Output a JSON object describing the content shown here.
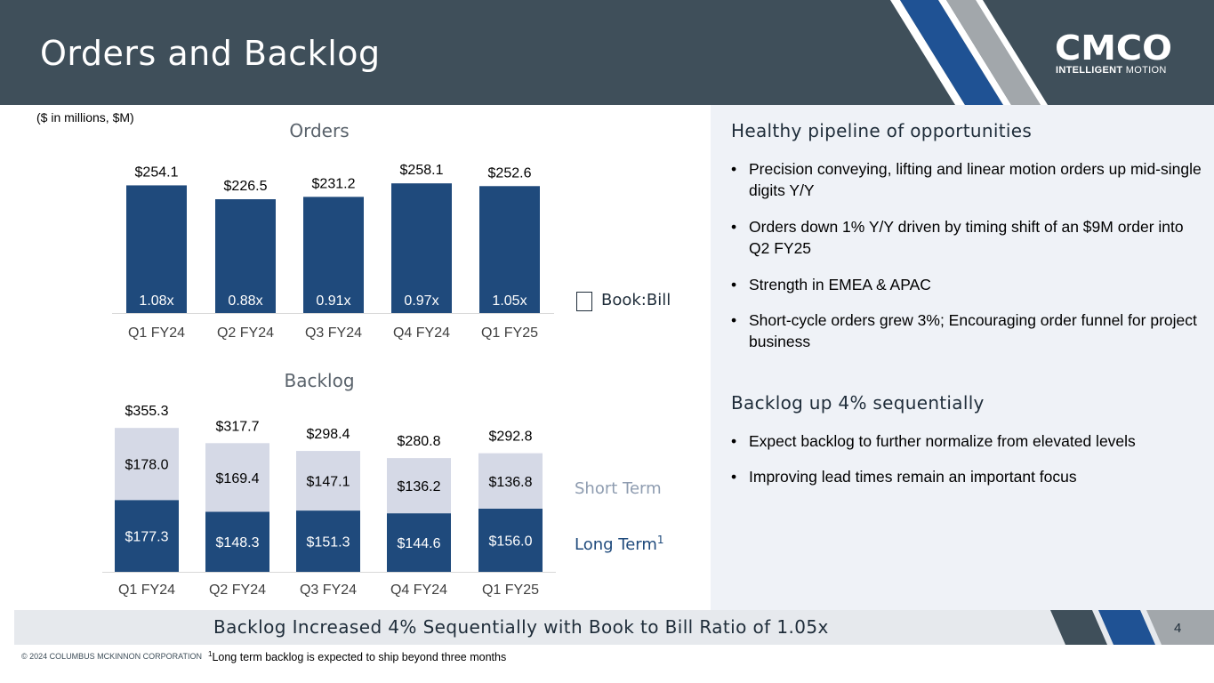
{
  "header": {
    "title": "Orders and Backlog",
    "logo_text": "CMCO",
    "logo_sub_bold": "INTELLIGENT",
    "logo_sub_light": "MOTION"
  },
  "units_note": "($ in millions, $M)",
  "legend": {
    "book_bill": "Book:Bill",
    "short_term": "Short Term",
    "long_term": "Long Term",
    "long_term_sup": "1"
  },
  "right_panel": {
    "heading1": "Healthy pipeline of opportunities",
    "bullets1": [
      "Precision conveying, lifting and linear motion orders up mid-single digits Y/Y",
      "Orders down 1% Y/Y driven by timing shift of an $9M order into Q2 FY25",
      "Strength in EMEA & APAC",
      "Short-cycle orders grew 3%; Encouraging order funnel for project business"
    ],
    "heading2": "Backlog up 4% sequentially",
    "bullets2": [
      "Expect backlog to further normalize from elevated levels",
      "Improving lead times remain an important focus"
    ]
  },
  "banner": {
    "text": "Backlog Increased 4% Sequentially with Book to Bill Ratio of 1.05x",
    "page_number": "4"
  },
  "footer": {
    "copyright": "© 2024 COLUMBUS MCKINNON CORPORATION",
    "footnote_sup": "1",
    "footnote": "Long term backlog is expected to ship beyond three months"
  },
  "colors": {
    "header_bg": "#3f4f5a",
    "dark_bar": "#1f4a7c",
    "light_bar": "#d5d9e6",
    "stripe_blue": "#1f5294",
    "stripe_gray": "#a2a7ab",
    "panel_bg": "#eff2f7"
  },
  "chart_data": [
    {
      "type": "bar",
      "title": "Orders",
      "categories": [
        "Q1 FY24",
        "Q2 FY24",
        "Q3 FY24",
        "Q4 FY24",
        "Q1 FY25"
      ],
      "values": [
        254.1,
        226.5,
        231.2,
        258.1,
        252.6
      ],
      "value_labels": [
        "$254.1",
        "$226.5",
        "$231.2",
        "$258.1",
        "$252.6"
      ],
      "book_to_bill": [
        "1.08x",
        "0.88x",
        "0.91x",
        "0.97x",
        "1.05x"
      ],
      "ylim": [
        0,
        260
      ],
      "xlabel": "",
      "ylabel": ""
    },
    {
      "type": "bar",
      "stacked": true,
      "title": "Backlog",
      "categories": [
        "Q1 FY24",
        "Q2 FY24",
        "Q3 FY24",
        "Q4 FY24",
        "Q1 FY25"
      ],
      "series": [
        {
          "name": "Long Term",
          "values": [
            177.3,
            148.3,
            151.3,
            144.6,
            156.0
          ],
          "labels": [
            "$177.3",
            "$148.3",
            "$151.3",
            "$144.6",
            "$156.0"
          ]
        },
        {
          "name": "Short Term",
          "values": [
            178.0,
            169.4,
            147.1,
            136.2,
            136.8
          ],
          "labels": [
            "$178.0",
            "$169.4",
            "$147.1",
            "$136.2",
            "$136.8"
          ]
        }
      ],
      "totals": [
        355.3,
        317.7,
        298.4,
        280.8,
        292.8
      ],
      "total_labels": [
        "$355.3",
        "$317.7",
        "$298.4",
        "$280.8",
        "$292.8"
      ],
      "ylim": [
        0,
        360
      ],
      "xlabel": "",
      "ylabel": ""
    }
  ]
}
